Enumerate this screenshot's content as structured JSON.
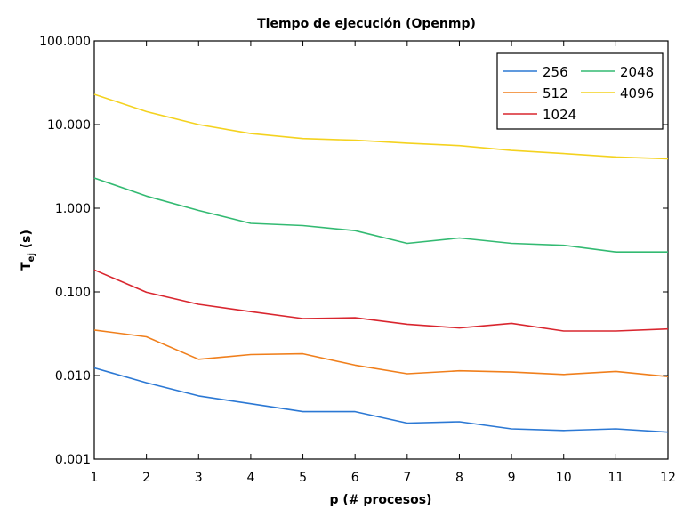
{
  "chart_data": {
    "type": "line",
    "title": "Tiempo de ejecución (Openmp)",
    "xlabel": "p (# procesos)",
    "ylabel": {
      "main": "T",
      "sub": "ej",
      "unit": " (s)"
    },
    "yscale": "log",
    "xlim": [
      1,
      12
    ],
    "ylim": [
      0.001,
      100
    ],
    "x": [
      1,
      2,
      3,
      4,
      5,
      6,
      7,
      8,
      9,
      10,
      11,
      12
    ],
    "xticks": [
      "1",
      "2",
      "3",
      "4",
      "5",
      "6",
      "7",
      "8",
      "9",
      "10",
      "11",
      "12"
    ],
    "yticks": [
      {
        "value": 100,
        "label": "100.000"
      },
      {
        "value": 10,
        "label": "10.000"
      },
      {
        "value": 1,
        "label": "1.000"
      },
      {
        "value": 0.1,
        "label": "0.100"
      },
      {
        "value": 0.01,
        "label": "0.010"
      },
      {
        "value": 0.001,
        "label": "0.001"
      }
    ],
    "grid": false,
    "legend_position": "top-right",
    "series": [
      {
        "name": "256",
        "color": "#2b78d4",
        "values": [
          0.0123,
          0.0082,
          0.0057,
          0.0046,
          0.0037,
          0.0037,
          0.0027,
          0.0028,
          0.0023,
          0.0022,
          0.0023,
          0.0021
        ]
      },
      {
        "name": "512",
        "color": "#f07f1c",
        "values": [
          0.035,
          0.029,
          0.0156,
          0.0178,
          0.0182,
          0.0133,
          0.0105,
          0.0114,
          0.011,
          0.0103,
          0.0112,
          0.0097
        ]
      },
      {
        "name": "1024",
        "color": "#d9262f",
        "values": [
          0.183,
          0.099,
          0.071,
          0.058,
          0.048,
          0.049,
          0.041,
          0.037,
          0.042,
          0.034,
          0.034,
          0.036
        ]
      },
      {
        "name": "2048",
        "color": "#33ba72",
        "values": [
          2.3,
          1.4,
          0.94,
          0.66,
          0.62,
          0.54,
          0.38,
          0.44,
          0.38,
          0.36,
          0.3,
          0.3
        ]
      },
      {
        "name": "4096",
        "color": "#f4d21f",
        "values": [
          23,
          14.3,
          10,
          7.8,
          6.8,
          6.5,
          6,
          5.6,
          4.9,
          4.5,
          4.1,
          3.9
        ]
      }
    ]
  }
}
